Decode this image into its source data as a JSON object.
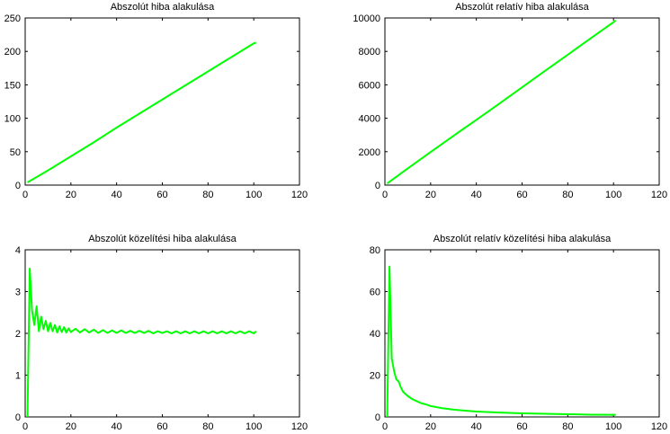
{
  "chart_data": [
    {
      "type": "line",
      "title": "Abszolút hiba alakulása",
      "xlim": [
        0,
        120
      ],
      "ylim": [
        0,
        250
      ],
      "xticks": [
        0,
        20,
        40,
        60,
        80,
        100,
        120
      ],
      "yticks": [
        0,
        50,
        100,
        150,
        200,
        250
      ],
      "grid": false,
      "color": "#00ff00",
      "series": [
        {
          "x": [
            1,
            10,
            20,
            30,
            40,
            50,
            60,
            70,
            80,
            90,
            100,
            101
          ],
          "y": [
            4,
            22,
            43,
            64,
            86,
            107,
            128,
            149,
            170,
            191,
            212,
            213
          ]
        }
      ]
    },
    {
      "type": "line",
      "title": "Abszolút relatív hiba alakulása",
      "xlim": [
        0,
        120
      ],
      "ylim": [
        0,
        10000
      ],
      "xticks": [
        0,
        20,
        40,
        60,
        80,
        100,
        120
      ],
      "yticks": [
        0,
        2000,
        4000,
        6000,
        8000,
        10000
      ],
      "grid": false,
      "color": "#00ff00",
      "series": [
        {
          "x": [
            1,
            10,
            20,
            30,
            40,
            50,
            60,
            70,
            80,
            90,
            100,
            101
          ],
          "y": [
            100,
            1000,
            1980,
            2950,
            3900,
            4870,
            5850,
            6830,
            7800,
            8780,
            9750,
            9850
          ]
        }
      ]
    },
    {
      "type": "line",
      "title": "Abszolút közelítési hiba alakulása",
      "xlim": [
        0,
        120
      ],
      "ylim": [
        0,
        4
      ],
      "xticks": [
        0,
        20,
        40,
        60,
        80,
        100,
        120
      ],
      "yticks": [
        0,
        1,
        2,
        3,
        4
      ],
      "grid": false,
      "color": "#00ff00",
      "series": [
        {
          "x": [
            1,
            2,
            3,
            4,
            5,
            6,
            7,
            8,
            9,
            10,
            11,
            12,
            13,
            14,
            15,
            16,
            17,
            18,
            19,
            20,
            22,
            24,
            26,
            28,
            30,
            32,
            34,
            36,
            38,
            40,
            42,
            44,
            46,
            48,
            50,
            52,
            54,
            56,
            58,
            60,
            62,
            64,
            66,
            68,
            70,
            72,
            74,
            76,
            78,
            80,
            82,
            84,
            86,
            88,
            90,
            92,
            94,
            96,
            98,
            100,
            101
          ],
          "y": [
            0.0,
            3.55,
            2.55,
            2.2,
            2.65,
            2.05,
            2.4,
            2.1,
            2.3,
            2.05,
            2.25,
            2.05,
            2.2,
            2.02,
            2.17,
            2.03,
            2.15,
            2.02,
            2.12,
            2.03,
            2.11,
            2.02,
            2.1,
            2.02,
            2.09,
            2.01,
            2.08,
            2.01,
            2.07,
            2.01,
            2.07,
            2.01,
            2.06,
            2.01,
            2.06,
            2.01,
            2.06,
            2.0,
            2.05,
            2.01,
            2.05,
            2.0,
            2.05,
            2.0,
            2.05,
            2.0,
            2.05,
            2.0,
            2.05,
            2.0,
            2.05,
            2.0,
            2.05,
            2.0,
            2.05,
            2.0,
            2.05,
            2.0,
            2.05,
            2.0,
            2.05
          ]
        }
      ]
    },
    {
      "type": "line",
      "title": "Abszolút relatív közelítési hiba alakulása",
      "xlim": [
        0,
        120
      ],
      "ylim": [
        0,
        80
      ],
      "xticks": [
        0,
        20,
        40,
        60,
        80,
        100,
        120
      ],
      "yticks": [
        0,
        20,
        40,
        60,
        80
      ],
      "grid": false,
      "color": "#00ff00",
      "series": [
        {
          "x": [
            1,
            2,
            3,
            4,
            5,
            6,
            7,
            8,
            10,
            12,
            14,
            16,
            18,
            20,
            25,
            30,
            35,
            40,
            50,
            60,
            70,
            80,
            90,
            100,
            101
          ],
          "y": [
            0,
            72,
            28,
            22,
            18,
            17,
            14,
            12,
            10,
            8.5,
            7.5,
            6.5,
            6,
            5.2,
            4.2,
            3.5,
            3,
            2.6,
            2.1,
            1.7,
            1.5,
            1.3,
            1.1,
            1.0,
            1.0
          ]
        }
      ]
    }
  ]
}
